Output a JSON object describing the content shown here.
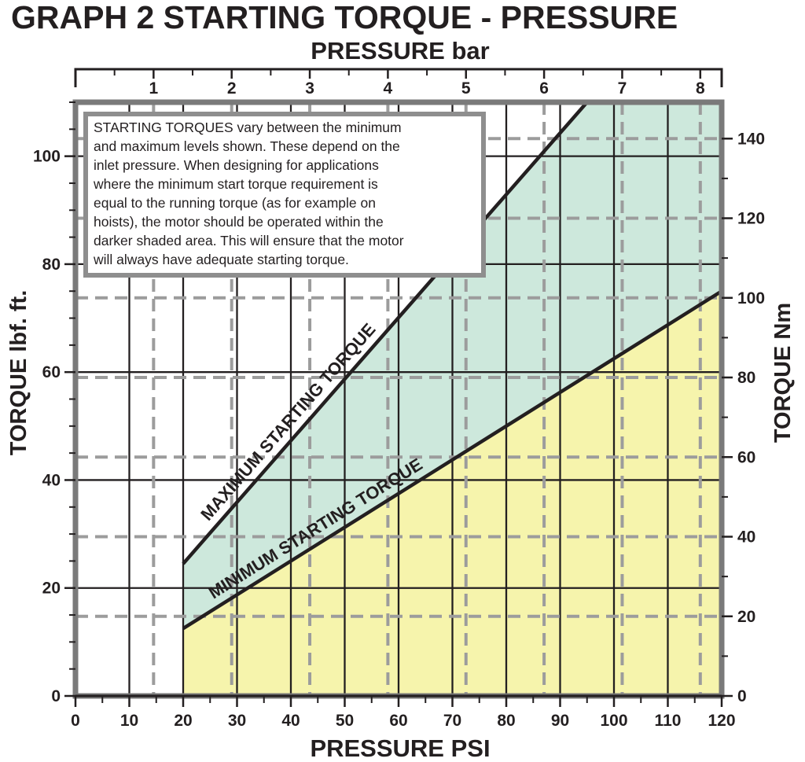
{
  "chart_data": {
    "type": "area",
    "title": "GRAPH 2 STARTING TORQUE - PRESSURE",
    "xlabel": "PRESSURE PSI",
    "ylabel": "TORQUE lbf. ft.",
    "x2label": "PRESSURE bar",
    "y2label": "TORQUE Nm",
    "xlim": [
      0,
      120
    ],
    "ylim": [
      0,
      110
    ],
    "x_ticks": [
      "0",
      "10",
      "20",
      "30",
      "40",
      "50",
      "60",
      "70",
      "80",
      "90",
      "100",
      "110",
      "120"
    ],
    "y_ticks": [
      "0",
      "20",
      "40",
      "60",
      "80",
      "100"
    ],
    "x2_ticks": [
      "1",
      "2",
      "3",
      "4",
      "5",
      "6",
      "7",
      "8"
    ],
    "y2_ticks": [
      "0",
      "20",
      "40",
      "60",
      "80",
      "100",
      "120",
      "140"
    ],
    "grid": true,
    "series": [
      {
        "name": "MAXIMUM STARTING TORQUE",
        "x": [
          20,
          95
        ],
        "y": [
          24.5,
          110
        ]
      },
      {
        "name": "MINIMUM STARTING TORQUE",
        "x": [
          20,
          120
        ],
        "y": [
          12.5,
          75
        ]
      }
    ],
    "annotation": {
      "highlight": "STARTING TORQUES",
      "text": [
        " vary between the minimum",
        "and maximum levels shown. These depend on the",
        "inlet pressure. When designing for applications",
        "where the minimum start torque requirement is",
        "equal to the running torque (as for example on",
        "hoists), the motor should be operated within the",
        "darker shaded area. This will ensure that the motor",
        "will always have adequate starting torque."
      ]
    },
    "colors": {
      "between_band": "#cde8dc",
      "below_min": "#f6f4ac",
      "lines": "#231f20",
      "dashed_grid": "#9c9c9c",
      "solid_grid": "#231f20",
      "plot_frame": "#7a7a7a"
    }
  }
}
